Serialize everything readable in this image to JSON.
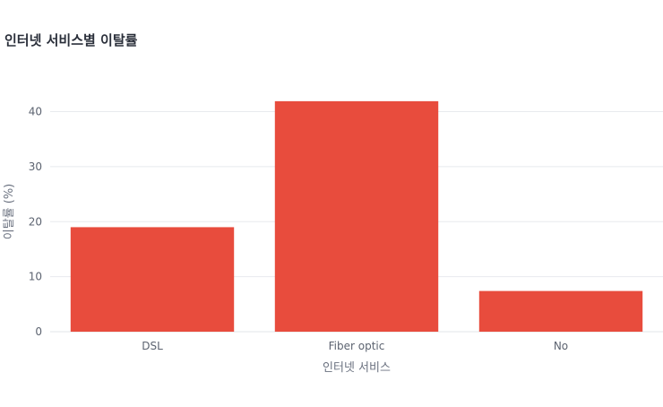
{
  "chart_data": {
    "type": "bar",
    "title": "인터넷 서비스별 이탈률",
    "xlabel": "인터넷 서비스",
    "ylabel": "이탈률 (%)",
    "categories": [
      "DSL",
      "Fiber optic",
      "No"
    ],
    "series": [
      {
        "values": [
          19.0,
          41.9,
          7.4
        ],
        "color": "#e84c3d"
      }
    ],
    "yticks": [
      "0",
      "10",
      "20",
      "30",
      "40"
    ],
    "ylim": [
      0,
      44
    ],
    "grid": true,
    "legend": "none"
  }
}
